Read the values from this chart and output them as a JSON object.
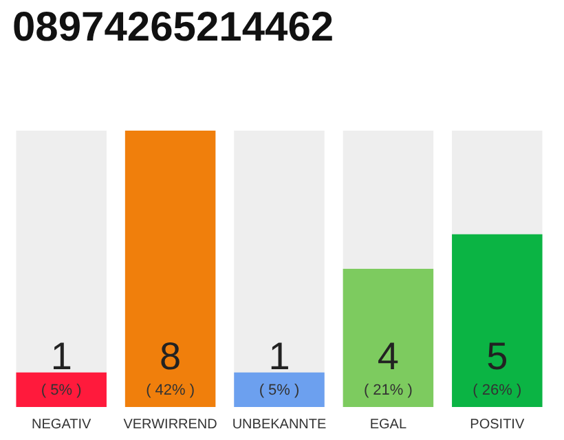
{
  "chart_data": {
    "type": "bar",
    "title": "08974265214462",
    "categories": [
      "NEGATIV",
      "VERWIRREND",
      "UNBEKANNTE",
      "EGAL",
      "POSITIV"
    ],
    "values": [
      1,
      8,
      1,
      4,
      5
    ],
    "colors": [
      "#ff1a3c",
      "#f07f0c",
      "#6ca0ef",
      "#7dcb5f",
      "#0bb444"
    ],
    "value_labels": [
      "1\n( 5% )",
      "8\n( 42% )",
      "1\n( 5% )",
      "4\n( 21% )",
      "5\n( 26% )"
    ]
  }
}
